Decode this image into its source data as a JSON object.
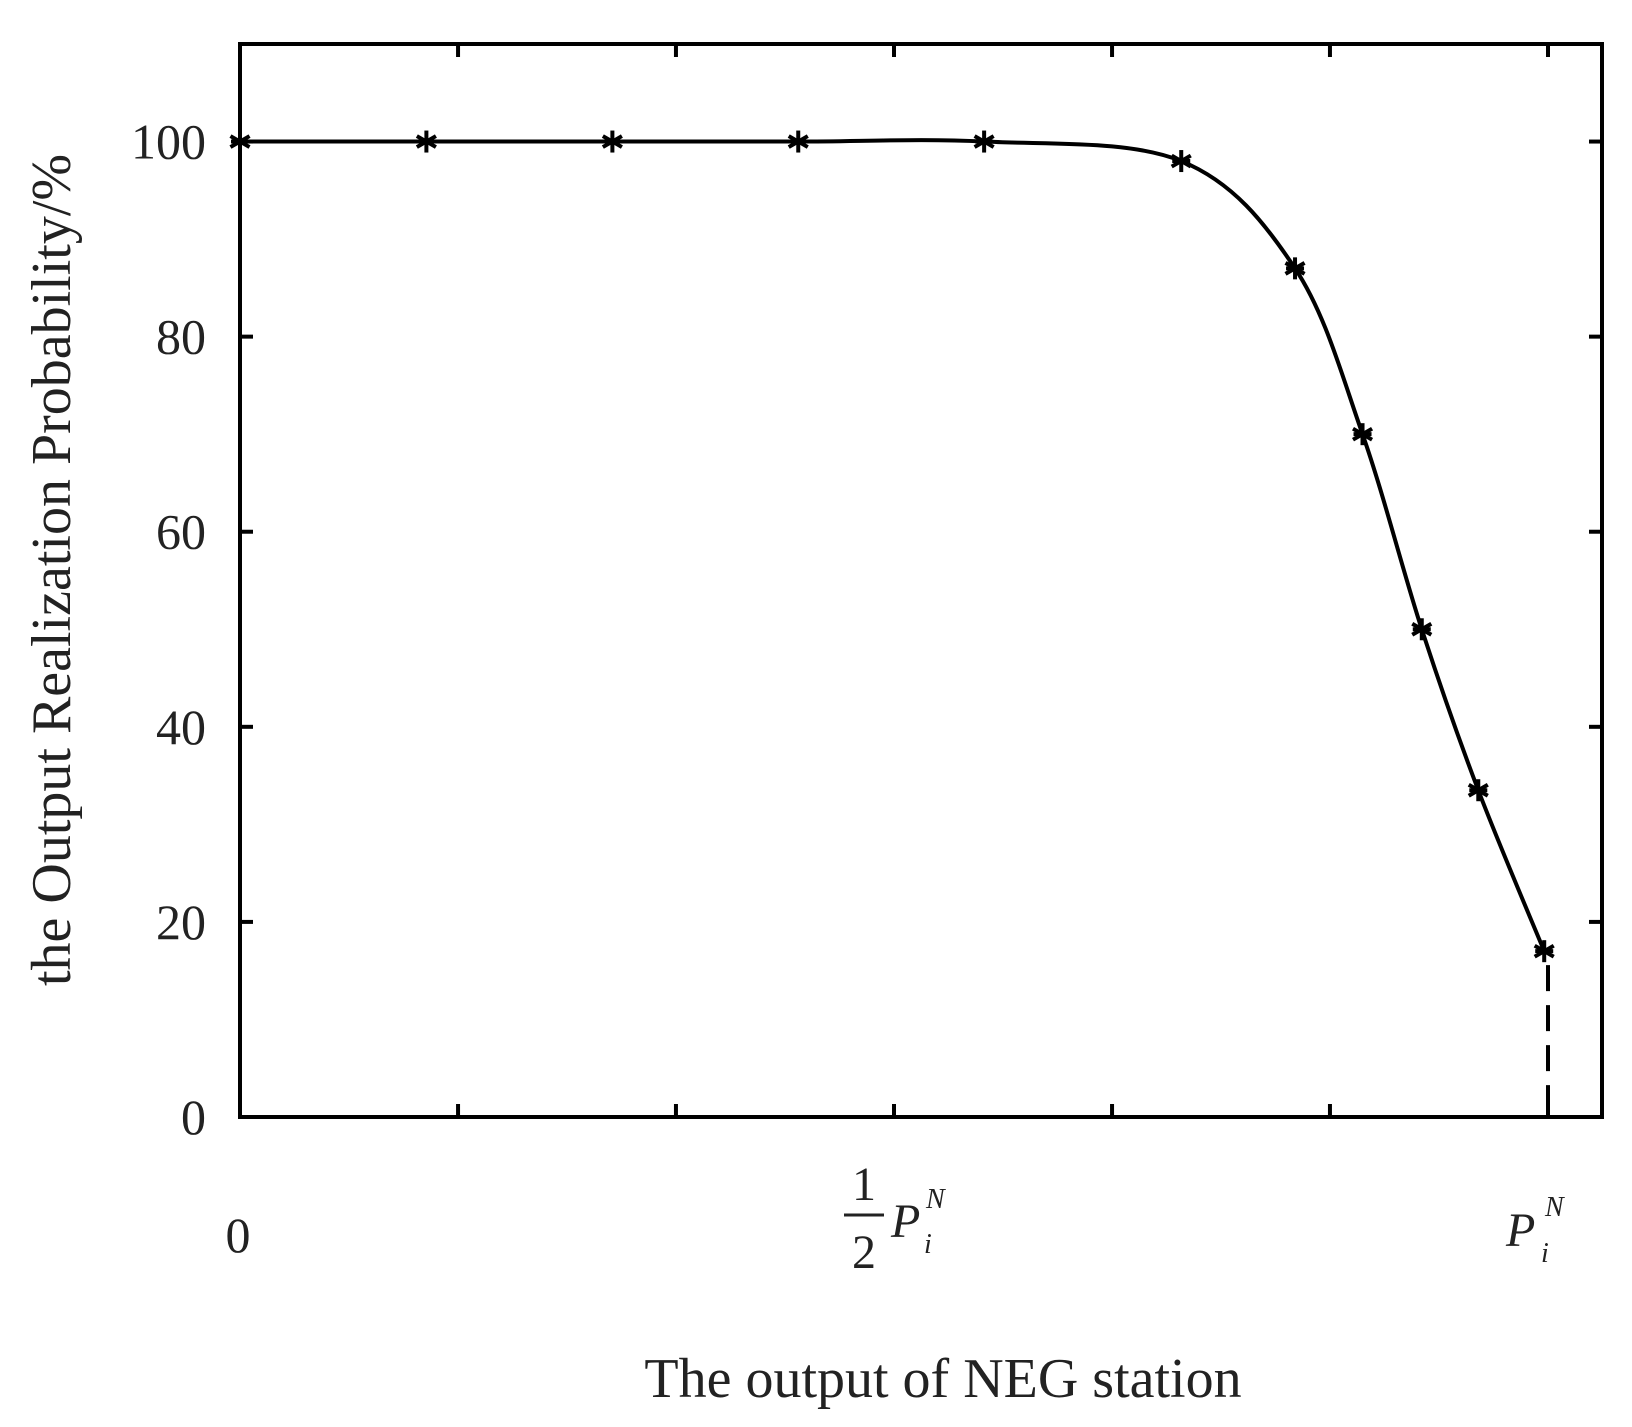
{
  "chart_data": {
    "type": "line",
    "title": "",
    "xlabel": "The output of NEG station",
    "ylabel": "the Output Realization Probability/%",
    "xlim": [
      0,
      1.04
    ],
    "ylim": [
      0,
      110
    ],
    "x_ticks": [
      0,
      0.1667,
      0.3333,
      0.5,
      0.6667,
      0.8333,
      1.0
    ],
    "y_ticks": [
      {
        "value": 0,
        "label": "0"
      },
      {
        "value": 20,
        "label": "20"
      },
      {
        "value": 40,
        "label": "40"
      },
      {
        "value": 60,
        "label": "60"
      },
      {
        "value": 80,
        "label": "80"
      },
      {
        "value": 100,
        "label": "100"
      }
    ],
    "x_tick_labels": [
      {
        "value": 0,
        "plain": "0"
      },
      {
        "value": 0.5,
        "frac_num": "1",
        "frac_den": "2",
        "var": "P",
        "sub": "i",
        "sup": "N"
      },
      {
        "value": 1.0,
        "var": "P",
        "sub": "i",
        "sup": "N"
      }
    ],
    "grid": false,
    "legend": "none",
    "marker": "asterisk",
    "line_color": "#000000",
    "series": [
      {
        "x": [
          0.0,
          0.1425,
          0.2847,
          0.4268,
          0.5689,
          0.7196,
          0.8066,
          0.8582,
          0.9035,
          0.9467,
          0.9971
        ],
        "y": [
          100,
          100,
          100,
          100,
          100,
          98,
          87,
          70,
          50,
          33.5,
          17
        ]
      }
    ],
    "reference_line": {
      "x": 1.0,
      "y_from": 0,
      "y_to": 17,
      "style": "dashed"
    }
  }
}
